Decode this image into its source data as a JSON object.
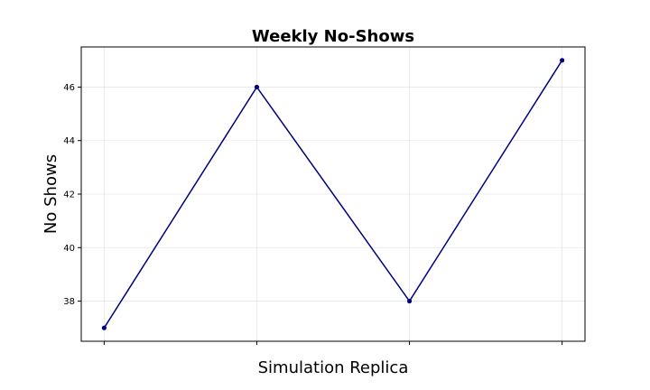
{
  "chart_data": {
    "type": "line",
    "title": "Weekly No-Shows",
    "xlabel": "Simulation Replica",
    "ylabel": "No Shows",
    "x": [
      1,
      2,
      3,
      4
    ],
    "x_tick_labels": [],
    "series": [
      {
        "values": [
          37,
          46,
          38,
          47
        ],
        "color": "#000080"
      }
    ],
    "xlim": [
      0.85,
      4.15
    ],
    "ylim": [
      36.5,
      47.5
    ],
    "yticks": [
      38,
      40,
      42,
      44,
      46
    ],
    "grid": true,
    "legend": "none"
  }
}
